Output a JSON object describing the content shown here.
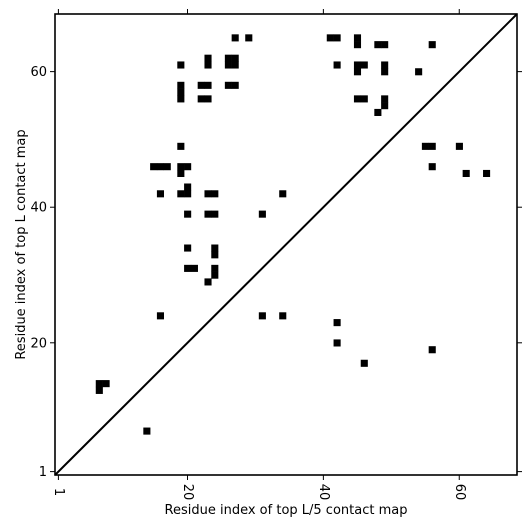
{
  "chart_data": {
    "type": "heatmap",
    "title": "",
    "xlabel": "Residue index of top L/5 contact map",
    "ylabel": "Residue index of top L contact map",
    "xlim": [
      0.5,
      68.5
    ],
    "ylim": [
      0.5,
      68.5
    ],
    "x_ticks": [
      1,
      20,
      40,
      60
    ],
    "y_ticks": [
      1,
      20,
      40,
      60
    ],
    "diagonal": true,
    "grid": false,
    "color": "#000000",
    "points": [
      [
        7,
        13
      ],
      [
        7,
        14
      ],
      [
        8,
        14
      ],
      [
        14,
        7
      ],
      [
        16,
        24
      ],
      [
        15,
        46
      ],
      [
        16,
        46
      ],
      [
        17,
        46
      ],
      [
        16,
        42
      ],
      [
        19,
        61
      ],
      [
        19,
        58
      ],
      [
        19,
        57
      ],
      [
        19,
        56
      ],
      [
        19,
        49
      ],
      [
        19,
        46
      ],
      [
        19,
        45
      ],
      [
        20,
        46
      ],
      [
        19,
        42
      ],
      [
        20,
        42
      ],
      [
        20,
        43
      ],
      [
        20,
        39
      ],
      [
        20,
        34
      ],
      [
        20,
        31
      ],
      [
        21,
        31
      ],
      [
        22,
        58
      ],
      [
        23,
        58
      ],
      [
        22,
        56
      ],
      [
        23,
        56
      ],
      [
        23,
        62
      ],
      [
        23,
        61
      ],
      [
        23,
        42
      ],
      [
        24,
        42
      ],
      [
        23,
        39
      ],
      [
        24,
        39
      ],
      [
        24,
        34
      ],
      [
        24,
        33
      ],
      [
        24,
        31
      ],
      [
        24,
        30
      ],
      [
        23,
        29
      ],
      [
        26,
        62
      ],
      [
        27,
        62
      ],
      [
        26,
        61
      ],
      [
        27,
        61
      ],
      [
        26,
        58
      ],
      [
        27,
        58
      ],
      [
        27,
        65
      ],
      [
        29,
        65
      ],
      [
        31,
        39
      ],
      [
        31,
        24
      ],
      [
        34,
        42
      ],
      [
        34,
        24
      ],
      [
        41,
        65
      ],
      [
        42,
        65
      ],
      [
        42,
        61
      ],
      [
        42,
        23
      ],
      [
        42,
        20
      ],
      [
        45,
        65
      ],
      [
        45,
        64
      ],
      [
        45,
        61
      ],
      [
        46,
        61
      ],
      [
        45,
        60
      ],
      [
        45,
        56
      ],
      [
        46,
        56
      ],
      [
        46,
        17
      ],
      [
        48,
        54
      ],
      [
        48,
        64
      ],
      [
        49,
        64
      ],
      [
        49,
        61
      ],
      [
        49,
        60
      ],
      [
        49,
        56
      ],
      [
        49,
        55
      ],
      [
        54,
        60
      ],
      [
        55,
        49
      ],
      [
        56,
        49
      ],
      [
        56,
        64
      ],
      [
        56,
        46
      ],
      [
        56,
        19
      ],
      [
        60,
        49
      ],
      [
        61,
        45
      ],
      [
        64,
        45
      ]
    ]
  }
}
